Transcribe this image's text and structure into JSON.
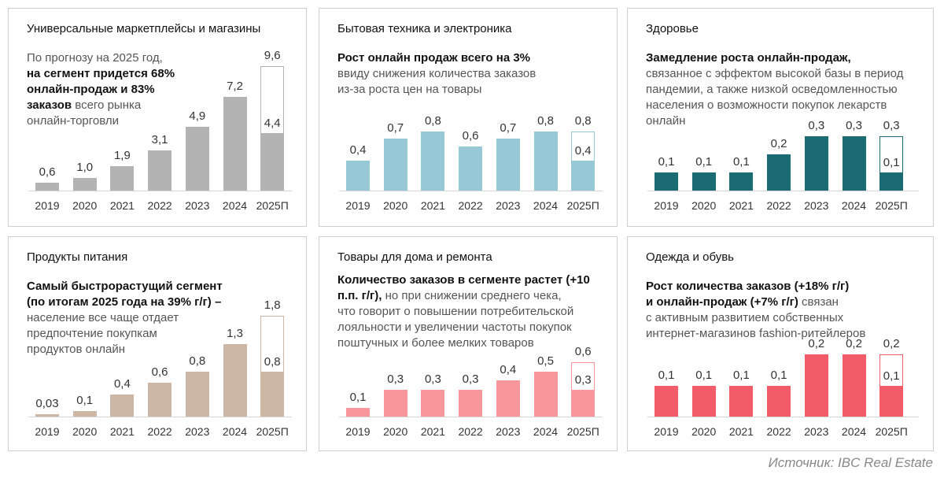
{
  "source": "Источник: IBC Real Estate",
  "chart_data": [
    {
      "type": "bar",
      "title": "Универсальные маркетплейсы и магазины",
      "color": "#b3b3b3",
      "body": [
        {
          "text": "По прогнозу на 2025 год,\n",
          "bold": false
        },
        {
          "text": "на сегмент придется 68%\nонлайн-продаж и 83%\nзаказов",
          "bold": true
        },
        {
          "text": " всего рынка\nонлайн-торговли",
          "bold": false
        }
      ],
      "categories": [
        "2019",
        "2020",
        "2021",
        "2022",
        "2023",
        "2024",
        "2025П"
      ],
      "values": [
        0.6,
        1.0,
        1.9,
        3.1,
        4.9,
        7.2,
        9.6
      ],
      "value_labels": [
        "0,6",
        "1,0",
        "1,9",
        "3,1",
        "4,9",
        "7,2",
        "9,6"
      ],
      "forecast_part": {
        "value": 4.4,
        "label": "4,4"
      }
    },
    {
      "type": "bar",
      "title": "Бытовая техника и электроника",
      "color": "#97c8d6",
      "body": [
        {
          "text": "Рост онлайн продаж всего на 3%",
          "bold": true
        },
        {
          "text": "\n ввиду снижения количества заказов\nиз-за роста цен на товары",
          "bold": false
        }
      ],
      "categories": [
        "2019",
        "2020",
        "2021",
        "2022",
        "2023",
        "2024",
        "2025П"
      ],
      "values": [
        0.4,
        0.7,
        0.8,
        0.6,
        0.7,
        0.8,
        0.8
      ],
      "value_labels": [
        "0,4",
        "0,7",
        "0,8",
        "0,6",
        "0,7",
        "0,8",
        "0,8"
      ],
      "forecast_part": {
        "value": 0.4,
        "label": "0,4"
      }
    },
    {
      "type": "bar",
      "title": "Здоровье",
      "color": "#1b6b73",
      "body": [
        {
          "text": "Замедление роста онлайн-продаж,",
          "bold": true
        },
        {
          "text": "\nсвязанное с эффектом высокой базы в период\nпандемии, а также низкой осведомленностью\nнаселения о возможности покупок лекарств\nонлайн",
          "bold": false
        }
      ],
      "categories": [
        "2019",
        "2020",
        "2021",
        "2022",
        "2023",
        "2024",
        "2025П"
      ],
      "values": [
        0.1,
        0.1,
        0.1,
        0.2,
        0.3,
        0.3,
        0.3
      ],
      "value_labels": [
        "0,1",
        "0,1",
        "0,1",
        "0,2",
        "0,3",
        "0,3",
        "0,3"
      ],
      "forecast_part": {
        "value": 0.1,
        "label": "0,1"
      }
    },
    {
      "type": "bar",
      "title": "Продукты питания",
      "color": "#cdb6a4",
      "body": [
        {
          "text": "Самый быстрорастущий сегмент\n(по итогам 2025 года на 39% г/г) –",
          "bold": true
        },
        {
          "text": "\nнаселение все чаще отдает\nпредпочтение покупкам\nпродуктов онлайн",
          "bold": false
        }
      ],
      "categories": [
        "2019",
        "2020",
        "2021",
        "2022",
        "2023",
        "2024",
        "2025П"
      ],
      "values": [
        0.03,
        0.1,
        0.4,
        0.6,
        0.8,
        1.3,
        1.8
      ],
      "value_labels": [
        "0,03",
        "0,1",
        "0,4",
        "0,6",
        "0,8",
        "1,3",
        "1,8"
      ],
      "forecast_part": {
        "value": 0.8,
        "label": "0,8"
      }
    },
    {
      "type": "bar",
      "title": "Товары для дома и ремонта",
      "color": "#f9969b",
      "body": [
        {
          "text": "Количество заказов в сегменте растет (+10\nп.п. г/г),",
          "bold": true
        },
        {
          "text": " но при снижении среднего чека,\nчто говорит о повышении потребительской\nлояльности и увеличении частоты покупок\nпоштучных и более мелких товаров",
          "bold": false
        }
      ],
      "categories": [
        "2019",
        "2020",
        "2021",
        "2022",
        "2023",
        "2024",
        "2025П"
      ],
      "values": [
        0.1,
        0.3,
        0.3,
        0.3,
        0.4,
        0.5,
        0.6
      ],
      "value_labels": [
        "0,1",
        "0,3",
        "0,3",
        "0,3",
        "0,4",
        "0,5",
        "0,6"
      ],
      "forecast_part": {
        "value": 0.3,
        "label": "0,3"
      }
    },
    {
      "type": "bar",
      "title": "Одежда и обувь",
      "color": "#f25c69",
      "body": [
        {
          "text": "Рост количества заказов (+18% г/г)\nи онлайн-продаж (+7% г/г)",
          "bold": true
        },
        {
          "text": " связан\nс активным развитием собственных\nинтернет-магазинов fashion-ритейлеров",
          "bold": false
        }
      ],
      "categories": [
        "2019",
        "2020",
        "2021",
        "2022",
        "2023",
        "2024",
        "2025П"
      ],
      "values": [
        0.1,
        0.1,
        0.1,
        0.1,
        0.2,
        0.2,
        0.2
      ],
      "value_labels": [
        "0,1",
        "0,1",
        "0,1",
        "0,1",
        "0,2",
        "0,2",
        "0,2"
      ],
      "forecast_part": {
        "value": 0.1,
        "label": "0,1"
      }
    }
  ]
}
